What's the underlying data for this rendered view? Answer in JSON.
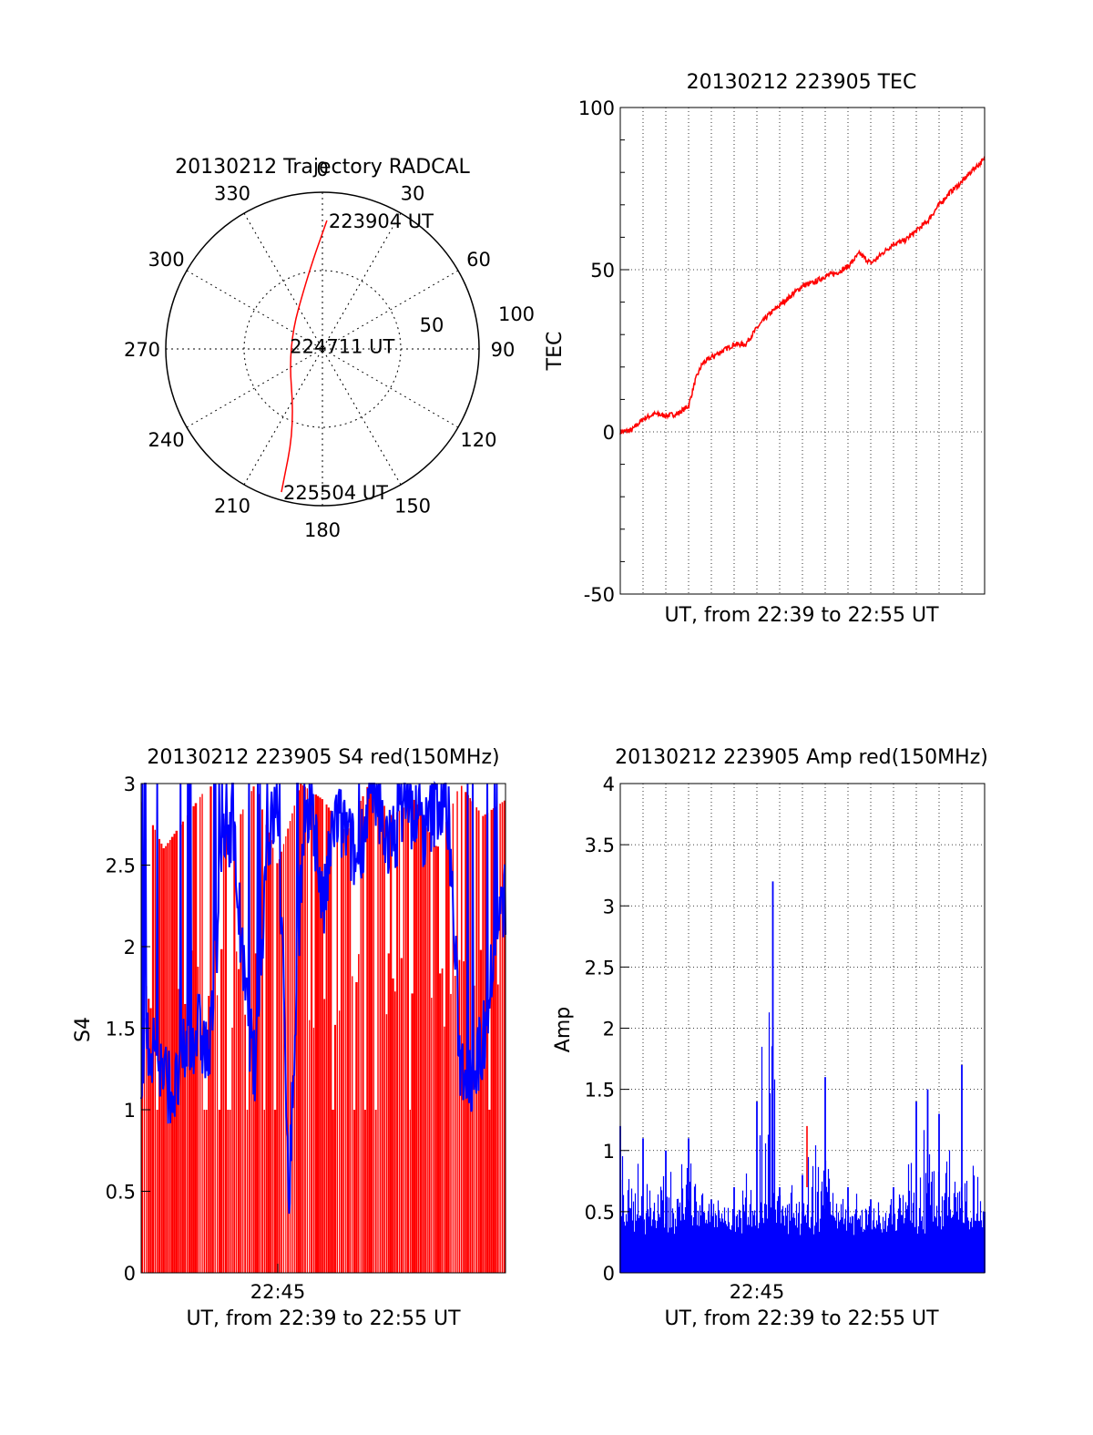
{
  "chart_data": [
    {
      "type": "polar",
      "title": "20130212 Trajectory RADCAL",
      "azimuth_labels": [
        "0",
        "30",
        "60",
        "90",
        "120",
        "150",
        "180",
        "210",
        "240",
        "270",
        "300",
        "330"
      ],
      "radius_labels": [
        "50",
        "100"
      ],
      "trajectory": {
        "color": "#ff0000",
        "points": [
          {
            "az": 2,
            "r": 82
          },
          {
            "az": 350,
            "r": 50
          },
          {
            "az": 275,
            "r": 22
          },
          {
            "az": 200,
            "r": 52
          },
          {
            "az": 196,
            "r": 95
          }
        ]
      },
      "annotations": [
        {
          "text": "223904 UT",
          "az": 2,
          "r": 82
        },
        {
          "text": "224711 UT",
          "az": 275,
          "r": 22
        },
        {
          "text": "225504 UT",
          "az": 196,
          "r": 95
        }
      ]
    },
    {
      "type": "line",
      "title": "20130212 223905 TEC",
      "xlabel": "UT, from 22:39 to 22:55 UT",
      "ylabel": "TEC",
      "xlim": [
        0,
        16
      ],
      "ylim": [
        -50,
        100
      ],
      "yticks": [
        -50,
        0,
        50,
        100
      ],
      "grid": true,
      "series": [
        {
          "color": "#ff0000",
          "x": [
            0,
            0.5,
            1,
            1.5,
            2,
            2.5,
            3,
            3.3,
            3.6,
            4,
            4.5,
            5,
            5.5,
            6,
            6.5,
            7,
            7.5,
            8,
            8.5,
            9,
            9.5,
            10,
            10.5,
            11,
            11.2,
            11.5,
            12,
            12.5,
            13,
            13.5,
            14,
            14.5,
            15,
            15.5,
            16
          ],
          "y": [
            0,
            0.5,
            4,
            5.5,
            5,
            5.5,
            8,
            16,
            21,
            23,
            25,
            27,
            27,
            32,
            36,
            39,
            42,
            45,
            46,
            48,
            49,
            51,
            55,
            52,
            53,
            55,
            58,
            59,
            62,
            65,
            70,
            74,
            77,
            81,
            84
          ]
        }
      ]
    },
    {
      "type": "bar",
      "title": "20130212 223905 S4 red(150MHz)",
      "xlabel": "UT, from 22:39 to 22:55 UT",
      "ylabel": "S4",
      "xlim": [
        0,
        16
      ],
      "ylim": [
        0,
        3
      ],
      "yticks": [
        0,
        0.5,
        1,
        1.5,
        2,
        2.5,
        3
      ],
      "xticks": [
        {
          "value": 6,
          "label": "22:45"
        }
      ],
      "grid": true,
      "series": [
        {
          "name": "",
          "color": "#ff0000",
          "style": "dense-bars",
          "x": [
            0,
            1,
            2,
            3,
            4,
            5,
            6,
            7,
            8,
            9,
            10,
            11,
            12,
            13,
            14,
            15,
            16
          ],
          "values": [
            2.9,
            2.6,
            2.8,
            3.0,
            2.7,
            3.0,
            2.5,
            3.0,
            2.9,
            2.7,
            3.0,
            2.8,
            2.9,
            2.6,
            3.0,
            2.8,
            2.9
          ]
        },
        {
          "name": "",
          "color": "#0000ff",
          "style": "line",
          "x": [
            0,
            0.5,
            1,
            1.5,
            2,
            2.5,
            3,
            3.5,
            4,
            4.5,
            5,
            5.5,
            6,
            6.5,
            7,
            7.5,
            8,
            8.5,
            9,
            9.5,
            10,
            10.5,
            11,
            11.5,
            12,
            12.5,
            13,
            13.5,
            14,
            14.5,
            15,
            15.5,
            16
          ],
          "y": [
            1.3,
            1.4,
            1.2,
            1.1,
            1.4,
            1.5,
            1.3,
            2.5,
            2.8,
            1.8,
            1.2,
            2.6,
            2.9,
            0.5,
            2.4,
            2.9,
            2.2,
            2.8,
            2.7,
            2.5,
            2.9,
            2.8,
            2.6,
            2.9,
            2.8,
            2.7,
            2.9,
            2.8,
            1.3,
            1.2,
            1.4,
            2.0,
            2.3
          ]
        }
      ]
    },
    {
      "type": "bar",
      "title": "20130212 223905 Amp red(150MHz)",
      "xlabel": "UT, from 22:39 to 22:55 UT",
      "ylabel": "Amp",
      "xlim": [
        0,
        16
      ],
      "ylim": [
        0,
        4
      ],
      "yticks": [
        0,
        0.5,
        1,
        1.5,
        2,
        2.5,
        3,
        3.5,
        4
      ],
      "xticks": [
        {
          "value": 6,
          "label": "22:45"
        }
      ],
      "grid": true,
      "series": [
        {
          "name": "",
          "color": "#0000ff",
          "x": [
            0,
            1,
            2,
            3,
            4,
            5,
            6,
            6.7,
            7,
            8,
            9,
            10,
            11,
            12,
            13,
            13.5,
            14,
            15,
            16
          ],
          "values": [
            1.2,
            1.1,
            1.0,
            1.1,
            0.6,
            0.7,
            1.4,
            3.2,
            0.7,
            0.8,
            1.6,
            0.7,
            0.6,
            0.7,
            1.4,
            1.5,
            1.3,
            1.7,
            0.5
          ]
        },
        {
          "name": "",
          "color": "#ff0000",
          "x": [
            8.2
          ],
          "values": [
            1.2
          ]
        }
      ]
    }
  ]
}
